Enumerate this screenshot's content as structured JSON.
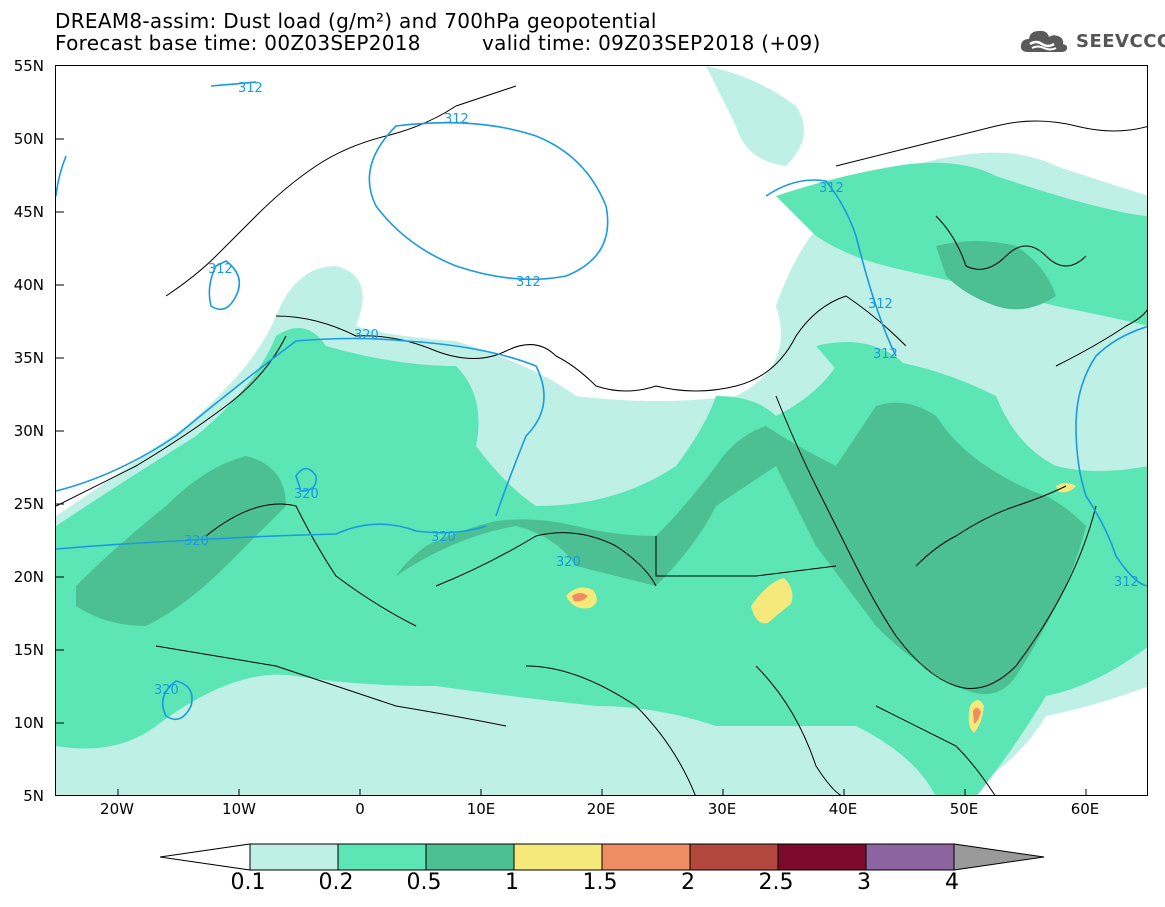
{
  "header": {
    "title": "DREAM8-assim: Dust load (g/m²) and 700hPa geopotential",
    "base_time": "Forecast base time: 00Z03SEP2018",
    "valid_time": "valid time: 09Z03SEP2018 (+09)"
  },
  "logo": {
    "text": "SEEVCCC",
    "icon": "cloud-logo-icon"
  },
  "map": {
    "lat_labels": [
      "55N",
      "50N",
      "45N",
      "40N",
      "35N",
      "30N",
      "25N",
      "20N",
      "15N",
      "10N",
      "5N"
    ],
    "lon_labels": [
      "20W",
      "10W",
      "0",
      "10E",
      "20E",
      "30E",
      "40E",
      "50E",
      "60E"
    ],
    "contour_labels": [
      "312",
      "312",
      "312",
      "312",
      "312",
      "312",
      "312",
      "320",
      "320",
      "320",
      "320",
      "320",
      "320",
      "312"
    ]
  },
  "colorbar": {
    "labels": [
      "0.1",
      "0.2",
      "0.5",
      "1",
      "1.5",
      "2",
      "2.5",
      "3",
      "4"
    ],
    "colors": [
      "#ffffff",
      "#bff0e6",
      "#5ce6b6",
      "#4cc092",
      "#f5e97b",
      "#ee8d62",
      "#b2483d",
      "#7d0a2c",
      "#8c64a0",
      "#9a9a9a"
    ]
  },
  "colors": {
    "dust_0_1": "#bff0e6",
    "dust_0_2": "#5ce6b6",
    "dust_0_5": "#4cc092",
    "dust_1": "#f5e97b",
    "dust_1_5": "#ee8d62",
    "contour": "#1a9ae0"
  }
}
